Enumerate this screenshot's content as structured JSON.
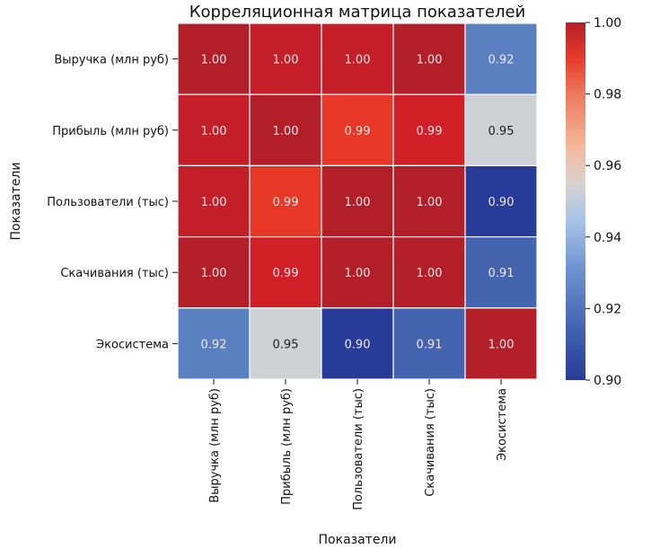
{
  "chart_data": {
    "type": "heatmap",
    "title": "Корреляционная матрица показателей",
    "xlabel": "Показатели",
    "ylabel": "Показатели",
    "x_categories": [
      "Выручка (млн руб)",
      "Прибыль (млн руб)",
      "Пользователи (тыс)",
      "Скачивания (тыс)",
      "Экосистема"
    ],
    "y_categories": [
      "Выручка (млн руб)",
      "Прибыль (млн руб)",
      "Пользователи (тыс)",
      "Скачивания (тыс)",
      "Экосистема"
    ],
    "values": [
      [
        1.0,
        1.0,
        1.0,
        1.0,
        0.92
      ],
      [
        1.0,
        1.0,
        0.99,
        0.99,
        0.95
      ],
      [
        1.0,
        0.99,
        1.0,
        1.0,
        0.9
      ],
      [
        1.0,
        0.99,
        1.0,
        1.0,
        0.91
      ],
      [
        0.92,
        0.95,
        0.9,
        0.91,
        1.0
      ]
    ],
    "annotations_format": "0.00",
    "colormap": "coolwarm",
    "vmin": 0.9,
    "vmax": 1.0,
    "colorbar": {
      "ticks": [
        1.0,
        0.98,
        0.96,
        0.94,
        0.92,
        0.9
      ],
      "tick_labels": [
        "1.00",
        "0.98",
        "0.96",
        "0.94",
        "0.92",
        "0.90"
      ],
      "placement": "right"
    },
    "cell_colors": [
      [
        "#b31f28",
        "#c41f28",
        "#c41f28",
        "#b31f28",
        "#5a80c2"
      ],
      [
        "#c41f28",
        "#b31f28",
        "#e63727",
        "#d11f28",
        "#cdd0d4"
      ],
      [
        "#c41f28",
        "#e63727",
        "#b31f28",
        "#b31f28",
        "#293b98"
      ],
      [
        "#b31f28",
        "#d11f28",
        "#b31f28",
        "#b31f28",
        "#4564b0"
      ],
      [
        "#5a80c2",
        "#cdd0d4",
        "#293b98",
        "#4564b0",
        "#b31f28"
      ]
    ],
    "grid_line_color": "#ffffff"
  }
}
